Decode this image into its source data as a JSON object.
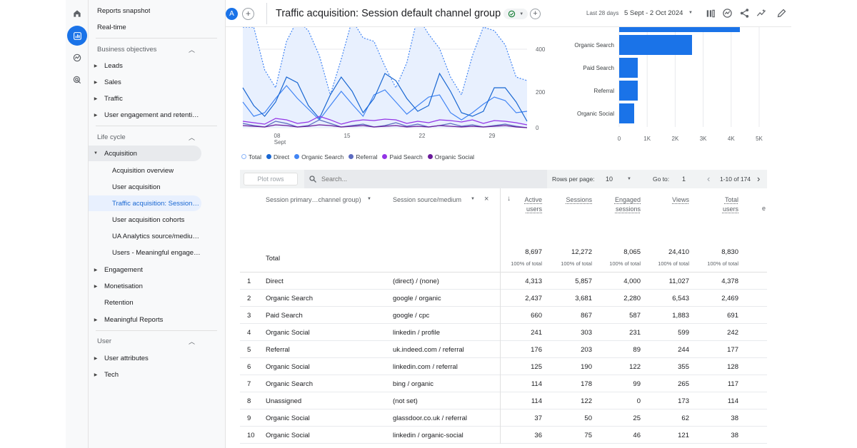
{
  "header": {
    "avatar_letter": "A",
    "title": "Traffic acquisition: Session default channel group",
    "date_prefix": "Last 28 days",
    "date_range": "5 Sept - 2 Oct 2024"
  },
  "sidebar": {
    "top_items": [
      "Reports snapshot",
      "Real-time"
    ],
    "business_heading": "Business objectives",
    "business_items": [
      "Leads",
      "Sales",
      "Traffic",
      "User engagement and retenti…"
    ],
    "lifecycle_heading": "Life cycle",
    "acquisition_label": "Acquisition",
    "acquisition_children": [
      "Acquisition overview",
      "User acquisition",
      "Traffic acquisition: Session…",
      "User acquisition cohorts",
      "UA Analytics source/mediu…",
      "Users - Meaningful engage…"
    ],
    "lifecycle_items": [
      "Engagement",
      "Monetisation",
      "Retention",
      "Meaningful Reports"
    ],
    "user_heading": "User",
    "user_items": [
      "User attributes",
      "Tech"
    ]
  },
  "line_chart": {
    "x_ticks": [
      "08",
      "15",
      "22",
      "29"
    ],
    "x_sub": "Sept",
    "y_ticks": [
      "400",
      "200",
      "0"
    ],
    "legend": [
      {
        "name": "Total",
        "color": "#8ab4f8"
      },
      {
        "name": "Direct",
        "color": "#1967d2"
      },
      {
        "name": "Organic Search",
        "color": "#4285f4"
      },
      {
        "name": "Referral",
        "color": "#5c6bc0"
      },
      {
        "name": "Paid Search",
        "color": "#9334e6"
      },
      {
        "name": "Organic Social",
        "color": "#6a1b9a"
      }
    ]
  },
  "bar_chart": {
    "categories": [
      "Organic Search",
      "Paid Search",
      "Referral",
      "Organic Social"
    ],
    "x_ticks": [
      "0",
      "1K",
      "2K",
      "3K",
      "4K",
      "5K"
    ],
    "color": "#1a73e8"
  },
  "toolbar": {
    "plot_rows": "Plot rows",
    "search_placeholder": "Search...",
    "rows_per_page_label": "Rows per page:",
    "rows_per_page": "10",
    "goto_label": "Go to:",
    "goto_value": "1",
    "pagination": "1-10 of 174"
  },
  "table": {
    "dim1_header": "Session primary…channel group)",
    "dim2_header": "Session source/medium",
    "metric_headers": [
      [
        "Active",
        "users"
      ],
      [
        "Sessions",
        ""
      ],
      [
        "Engaged",
        "sessions"
      ],
      [
        "Views",
        ""
      ],
      [
        "Total",
        "users"
      ]
    ],
    "partial_header": "e",
    "total_label": "Total",
    "totals": [
      "8,697",
      "12,272",
      "8,065",
      "24,410",
      "8,830"
    ],
    "totals_sub": "100% of total",
    "rows": [
      {
        "idx": "1",
        "channel": "Direct",
        "source": "(direct) / (none)",
        "v": [
          "4,313",
          "5,857",
          "4,000",
          "11,027",
          "4,378"
        ]
      },
      {
        "idx": "2",
        "channel": "Organic Search",
        "source": "google / organic",
        "v": [
          "2,437",
          "3,681",
          "2,280",
          "6,543",
          "2,469"
        ]
      },
      {
        "idx": "3",
        "channel": "Paid Search",
        "source": "google / cpc",
        "v": [
          "660",
          "867",
          "587",
          "1,883",
          "691"
        ]
      },
      {
        "idx": "4",
        "channel": "Organic Social",
        "source": "linkedin / profile",
        "v": [
          "241",
          "303",
          "231",
          "599",
          "242"
        ]
      },
      {
        "idx": "5",
        "channel": "Referral",
        "source": "uk.indeed.com / referral",
        "v": [
          "176",
          "203",
          "89",
          "244",
          "177"
        ]
      },
      {
        "idx": "6",
        "channel": "Organic Social",
        "source": "linkedin.com / referral",
        "v": [
          "125",
          "190",
          "122",
          "355",
          "128"
        ]
      },
      {
        "idx": "7",
        "channel": "Organic Search",
        "source": "bing / organic",
        "v": [
          "114",
          "178",
          "99",
          "265",
          "117"
        ]
      },
      {
        "idx": "8",
        "channel": "Unassigned",
        "source": "(not set)",
        "v": [
          "114",
          "122",
          "0",
          "173",
          "114"
        ]
      },
      {
        "idx": "9",
        "channel": "Organic Social",
        "source": "glassdoor.co.uk / referral",
        "v": [
          "37",
          "50",
          "25",
          "62",
          "38"
        ]
      },
      {
        "idx": "10",
        "channel": "Organic Social",
        "source": "linkedin / organic-social",
        "v": [
          "36",
          "75",
          "46",
          "121",
          "38"
        ]
      }
    ]
  }
}
